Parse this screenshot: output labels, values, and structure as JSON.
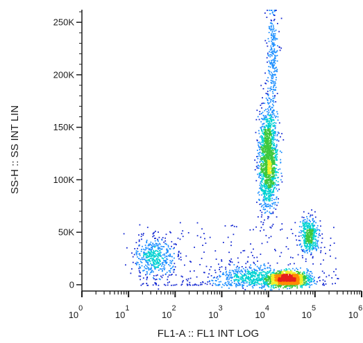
{
  "chart_data": {
    "type": "scatter",
    "style": "flow-cytometry-density-dot-plot",
    "xlabel": "FL1-A :: FL1 INT LOG",
    "ylabel": "SS-H :: SS INT LIN",
    "xscale": "log",
    "yscale": "linear",
    "xlim": [
      1,
      1000000
    ],
    "ylim": [
      -6000,
      262000
    ],
    "x_ticks": [
      {
        "base": "10",
        "exp": "0",
        "value": 1
      },
      {
        "base": "10",
        "exp": "1",
        "value": 10
      },
      {
        "base": "10",
        "exp": "2",
        "value": 100
      },
      {
        "base": "10",
        "exp": "3",
        "value": 1000
      },
      {
        "base": "10",
        "exp": "4",
        "value": 10000
      },
      {
        "base": "10",
        "exp": "5",
        "value": 100000
      },
      {
        "base": "10",
        "exp": "6",
        "value": 1000000
      }
    ],
    "y_ticks": [
      {
        "label": "0",
        "value": 0
      },
      {
        "label": "50K",
        "value": 50000
      },
      {
        "label": "100K",
        "value": 100000
      },
      {
        "label": "150K",
        "value": 150000
      },
      {
        "label": "200K",
        "value": 200000
      },
      {
        "label": "250K",
        "value": 250000
      }
    ],
    "grid": false,
    "colormap": [
      "#1428d2",
      "#1e90ff",
      "#00d2d2",
      "#3cc83c",
      "#f0f028",
      "#ff8c00",
      "#e61e1e"
    ],
    "populations": [
      {
        "x_center": 9700,
        "y_center": 120000,
        "x_spread_decades": 0.1,
        "y_spread": 24000,
        "density": "high"
      },
      {
        "x_center": 12000,
        "y_center": 215000,
        "x_spread_decades": 0.06,
        "y_spread": 28000,
        "density": "low"
      },
      {
        "x_center": 25000,
        "y_center": 6000,
        "x_spread_decades": 0.22,
        "y_spread": 3500,
        "density": "high"
      },
      {
        "x_center": 4000,
        "y_center": 8000,
        "x_spread_decades": 0.35,
        "y_spread": 5000,
        "density": "medium"
      },
      {
        "x_center": 75000,
        "y_center": 48000,
        "x_spread_decades": 0.1,
        "y_spread": 8000,
        "density": "medium"
      },
      {
        "x_center": 35,
        "y_center": 27000,
        "x_spread_decades": 0.22,
        "y_spread": 9000,
        "density": "medium"
      }
    ]
  }
}
